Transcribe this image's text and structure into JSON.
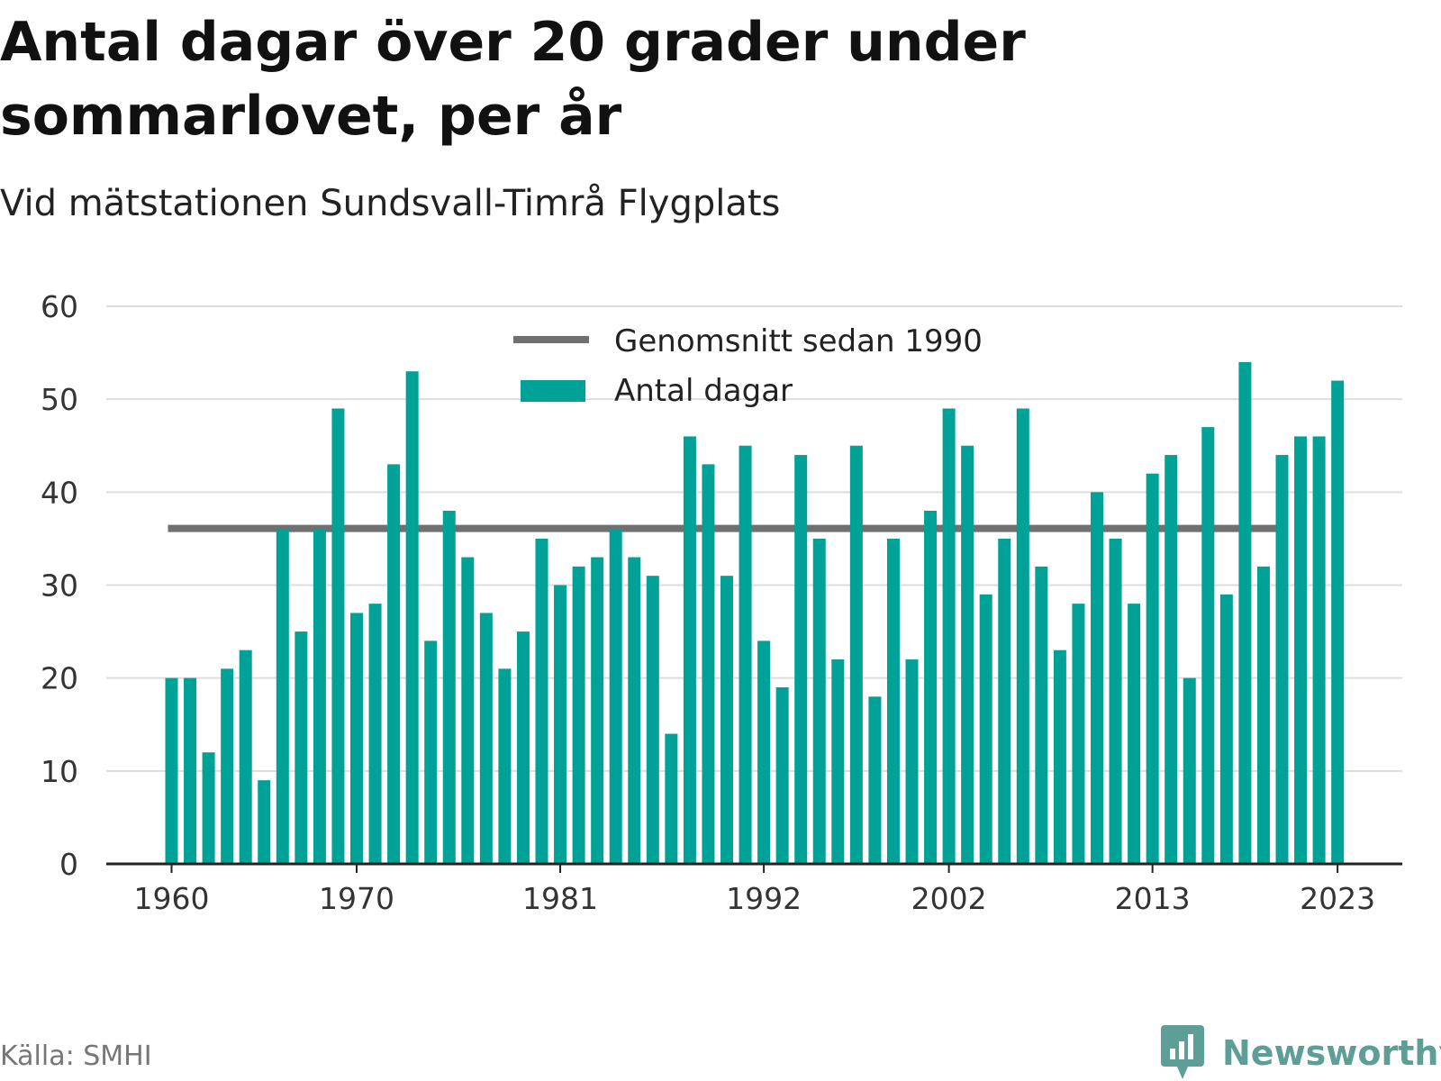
{
  "title": "Antal dagar över 20 grader under sommarlovet, per år",
  "subtitle": "Vid mätstationen Sundsvall-Timrå Flygplats",
  "source": "Källa: SMHI",
  "brand": {
    "name": "Newsworthy",
    "icon": "bar-chart-speech-bubble-icon"
  },
  "colors": {
    "bars": "#00a197",
    "average": "#707070",
    "grid": "#dddddd",
    "axis": "#222222",
    "brand": "#5d9e96"
  },
  "chart_data": {
    "type": "bar",
    "x": [
      1960,
      1961,
      1962,
      1963,
      1964,
      1965,
      1966,
      1967,
      1968,
      1969,
      1970,
      1971,
      1972,
      1973,
      1974,
      1975,
      1976,
      1977,
      1978,
      1979,
      1980,
      1981,
      1982,
      1983,
      1984,
      1985,
      1986,
      1987,
      1988,
      1989,
      1990,
      1991,
      1992,
      1993,
      1994,
      1995,
      1996,
      1997,
      1998,
      1999,
      2000,
      2001,
      2002,
      2003,
      2004,
      2005,
      2006,
      2007,
      2008,
      2009,
      2010,
      2011,
      2012,
      2013,
      2014,
      2015,
      2016,
      2017,
      2018,
      2019,
      2020,
      2021,
      2022,
      2023
    ],
    "series": [
      {
        "name": "Antal dagar",
        "values": [
          20,
          20,
          12,
          21,
          23,
          9,
          36,
          25,
          36,
          49,
          27,
          28,
          43,
          53,
          24,
          38,
          33,
          27,
          21,
          25,
          35,
          30,
          32,
          33,
          36,
          33,
          31,
          14,
          46,
          43,
          31,
          45,
          24,
          19,
          44,
          35,
          22,
          45,
          18,
          35,
          22,
          38,
          49,
          45,
          29,
          35,
          49,
          32,
          23,
          28,
          40,
          35,
          28,
          42,
          44,
          20,
          47,
          29,
          54,
          32,
          44,
          46,
          46,
          52
        ]
      }
    ],
    "average": {
      "name": "Genomsnitt sedan 1990",
      "value": 36.1,
      "x_start": 1960,
      "x_end": 2020
    },
    "x_ticks": [
      "1960",
      "1970",
      "1981",
      "1992",
      "2002",
      "2013",
      "2023"
    ],
    "y_ticks": [
      "0",
      "10",
      "20",
      "30",
      "40",
      "50",
      "60"
    ],
    "ylim": [
      0,
      60
    ],
    "grid": true,
    "legend": {
      "position": "top-center",
      "items": [
        "Genomsnitt sedan 1990",
        "Antal dagar"
      ]
    },
    "xlabel": "",
    "ylabel": ""
  }
}
